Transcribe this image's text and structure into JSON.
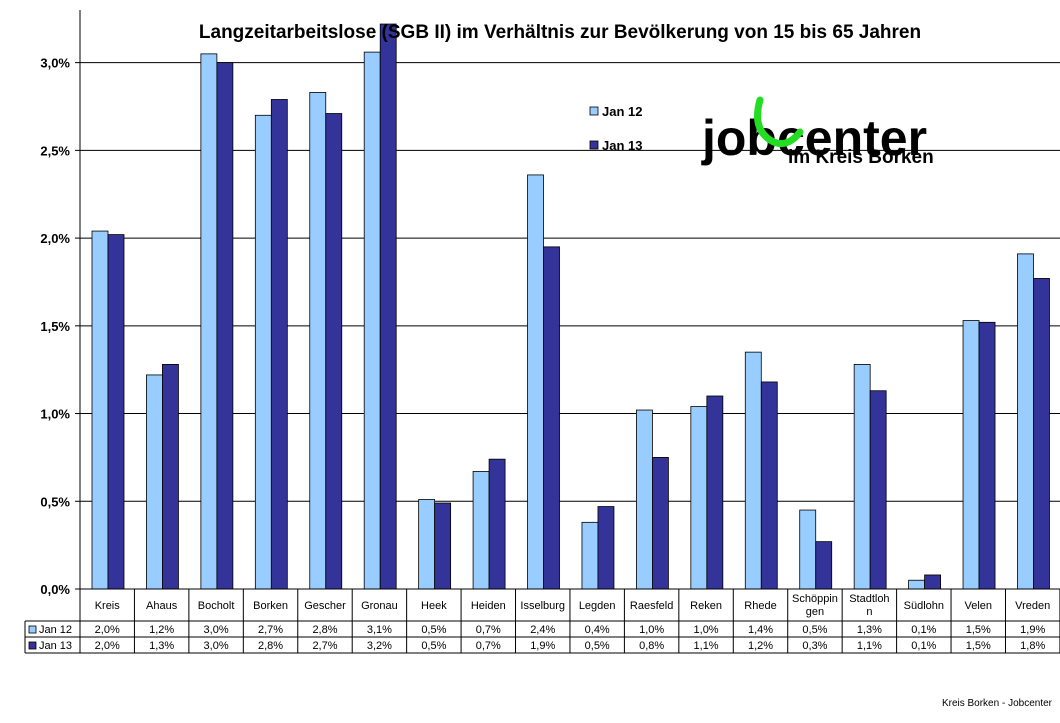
{
  "chart_data": {
    "type": "bar",
    "title": "Langzeitarbeitslose (SGB II) im Verhältnis zur Bevölkerung von 15 bis 65 Jahren",
    "xlabel": "",
    "ylabel": "",
    "ylim": [
      0,
      3.3
    ],
    "yticks": [
      0,
      0.5,
      1.0,
      1.5,
      2.0,
      2.5,
      3.0
    ],
    "ytick_labels": [
      "0,0%",
      "0,5%",
      "1,0%",
      "1,5%",
      "2,0%",
      "2,5%",
      "3,0%"
    ],
    "grid": true,
    "legend_position": "top-center",
    "categories": [
      "Kreis",
      "Ahaus",
      "Bocholt",
      "Borken",
      "Gescher",
      "Gronau",
      "Heek",
      "Heiden",
      "Isselburg",
      "Legden",
      "Raesfeld",
      "Reken",
      "Rhede",
      "Schöppingen",
      "Stadtlohn",
      "Südlohn",
      "Velen",
      "Vreden"
    ],
    "category_label_lines": [
      [
        "Kreis"
      ],
      [
        "Ahaus"
      ],
      [
        "Bocholt"
      ],
      [
        "Borken"
      ],
      [
        "Gescher"
      ],
      [
        "Gronau"
      ],
      [
        "Heek"
      ],
      [
        "Heiden"
      ],
      [
        "Isselburg"
      ],
      [
        "Legden"
      ],
      [
        "Raesfeld"
      ],
      [
        "Reken"
      ],
      [
        "Rhede"
      ],
      [
        "Schöppin",
        "gen"
      ],
      [
        "Stadtloh",
        "n"
      ],
      [
        "Südlohn"
      ],
      [
        "Velen"
      ],
      [
        "Vreden"
      ]
    ],
    "series": [
      {
        "name": "Jan 12",
        "color": "#99ccff",
        "values": [
          2.04,
          1.22,
          3.05,
          2.7,
          2.83,
          3.06,
          0.51,
          0.67,
          2.36,
          0.38,
          1.02,
          1.04,
          1.35,
          0.45,
          1.28,
          0.05,
          1.53,
          1.91
        ],
        "labels": [
          "2,0%",
          "1,2%",
          "3,0%",
          "2,7%",
          "2,8%",
          "3,1%",
          "0,5%",
          "0,7%",
          "2,4%",
          "0,4%",
          "1,0%",
          "1,0%",
          "1,4%",
          "0,5%",
          "1,3%",
          "0,1%",
          "1,5%",
          "1,9%"
        ]
      },
      {
        "name": "Jan 13",
        "color": "#333399",
        "values": [
          2.02,
          1.28,
          3.0,
          2.79,
          2.71,
          3.22,
          0.49,
          0.74,
          1.95,
          0.47,
          0.75,
          1.1,
          1.18,
          0.27,
          1.13,
          0.08,
          1.52,
          1.77
        ],
        "labels": [
          "2,0%",
          "1,3%",
          "3,0%",
          "2,8%",
          "2,7%",
          "3,2%",
          "0,5%",
          "0,7%",
          "1,9%",
          "0,5%",
          "0,8%",
          "1,1%",
          "1,2%",
          "0,3%",
          "1,1%",
          "0,1%",
          "1,5%",
          "1,8%"
        ]
      }
    ]
  },
  "logo": {
    "main_text": "jobcenter",
    "sub_text": "im Kreis Borken",
    "text_color": "#000000",
    "accent_color": "#22dd22"
  },
  "footer": {
    "credit": "Kreis Borken - Jobcenter"
  }
}
